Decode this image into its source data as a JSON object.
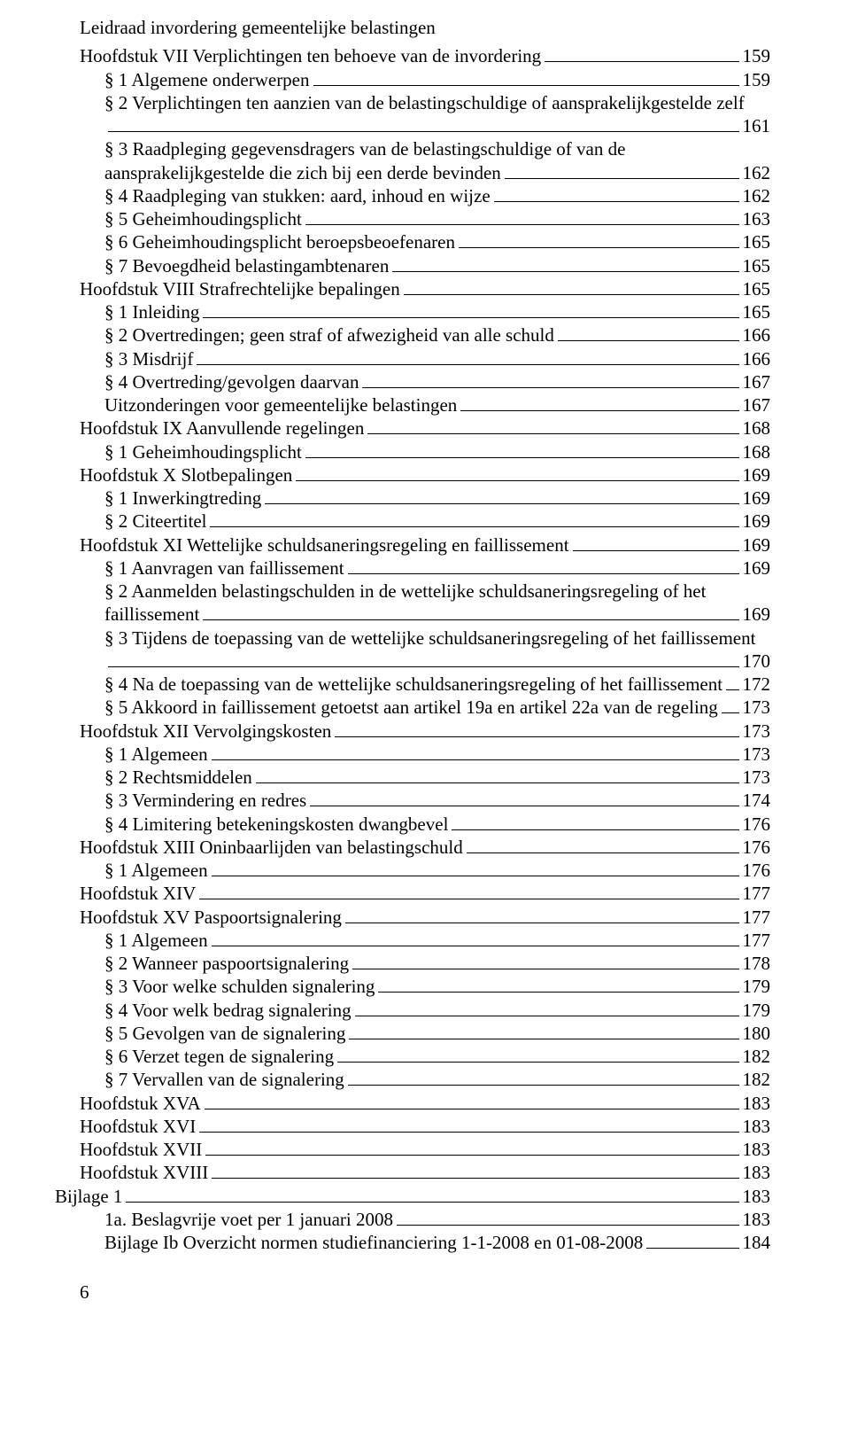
{
  "header": "Leidraad invordering gemeentelijke belastingen",
  "page_number": "6",
  "toc": [
    {
      "indent": 0,
      "label": "Hoofdstuk VII Verplichtingen ten behoeve van de invordering",
      "page": "159"
    },
    {
      "indent": 1,
      "label": "§ 1 Algemene onderwerpen",
      "page": "159"
    },
    {
      "indent": 1,
      "label": "§ 2 Verplichtingen ten aanzien van de belastingschuldige of aansprakelijkgestelde zelf",
      "page": "161",
      "wrap": true
    },
    {
      "indent": 1,
      "label": "§ 3 Raadpleging gegevensdragers van de belastingschuldige of van de aansprakelijkgestelde die zich bij een derde bevinden",
      "page": "162",
      "wrap": true
    },
    {
      "indent": 1,
      "label": "§ 4 Raadpleging van stukken: aard, inhoud en wijze",
      "page": "162"
    },
    {
      "indent": 1,
      "label": "§ 5 Geheimhoudingsplicht",
      "page": "163"
    },
    {
      "indent": 1,
      "label": "§ 6 Geheimhoudingsplicht beroepsbeoefenaren",
      "page": "165"
    },
    {
      "indent": 1,
      "label": "§ 7 Bevoegdheid belastingambtenaren",
      "page": "165"
    },
    {
      "indent": 0,
      "label": "Hoofdstuk VIII Strafrechtelijke bepalingen",
      "page": "165"
    },
    {
      "indent": 1,
      "label": "§ 1 Inleiding",
      "page": "165"
    },
    {
      "indent": 1,
      "label": "§ 2 Overtredingen; geen straf of afwezigheid van alle schuld",
      "page": "166"
    },
    {
      "indent": 1,
      "label": "§ 3 Misdrijf",
      "page": "166"
    },
    {
      "indent": 1,
      "label": "§ 4 Overtreding/gevolgen daarvan",
      "page": "167"
    },
    {
      "indent": 1,
      "label": "Uitzonderingen voor gemeentelijke belastingen",
      "page": "167"
    },
    {
      "indent": 0,
      "label": "Hoofdstuk IX Aanvullende regelingen",
      "page": "168"
    },
    {
      "indent": 1,
      "label": "§ 1 Geheimhoudingsplicht",
      "page": "168"
    },
    {
      "indent": 0,
      "label": "Hoofdstuk X Slotbepalingen",
      "page": "169"
    },
    {
      "indent": 1,
      "label": "§ 1 Inwerkingtreding",
      "page": "169"
    },
    {
      "indent": 1,
      "label": "§ 2 Citeertitel",
      "page": "169"
    },
    {
      "indent": 0,
      "label": "Hoofdstuk XI Wettelijke schuldsaneringsregeling en faillissement",
      "page": "169"
    },
    {
      "indent": 1,
      "label": "§ 1 Aanvragen van faillissement",
      "page": "169"
    },
    {
      "indent": 1,
      "label": "§ 2 Aanmelden belastingschulden in de wettelijke schuldsaneringsregeling of het faillissement",
      "page": "169",
      "wrap": true
    },
    {
      "indent": 1,
      "label": "§ 3 Tijdens de toepassing van de wettelijke schuldsaneringsregeling of het faillissement",
      "page": "170",
      "wrap": true
    },
    {
      "indent": 1,
      "label": "§ 4 Na de toepassing van de wettelijke schuldsaneringsregeling of het faillissement",
      "page": "172"
    },
    {
      "indent": 1,
      "label": "§ 5 Akkoord in faillissement getoetst aan artikel 19a en artikel 22a van de regeling",
      "page": "173"
    },
    {
      "indent": 0,
      "label": "Hoofdstuk XII Vervolgingskosten",
      "page": "173"
    },
    {
      "indent": 1,
      "label": "§ 1 Algemeen",
      "page": "173"
    },
    {
      "indent": 1,
      "label": "§ 2 Rechtsmiddelen",
      "page": "173"
    },
    {
      "indent": 1,
      "label": "§ 3 Vermindering en redres",
      "page": "174"
    },
    {
      "indent": 1,
      "label": "§ 4 Limitering betekeningskosten dwangbevel",
      "page": "176"
    },
    {
      "indent": 0,
      "label": "Hoofdstuk XIII Oninbaarlijden van belastingschuld",
      "page": "176"
    },
    {
      "indent": 1,
      "label": "§ 1 Algemeen",
      "page": "176"
    },
    {
      "indent": 0,
      "label": "Hoofdstuk XIV",
      "page": "177"
    },
    {
      "indent": 0,
      "label": "Hoofdstuk XV Paspoortsignalering",
      "page": "177"
    },
    {
      "indent": 1,
      "label": "§ 1 Algemeen",
      "page": "177"
    },
    {
      "indent": 1,
      "label": "§ 2 Wanneer paspoortsignalering",
      "page": "178"
    },
    {
      "indent": 1,
      "label": "§ 3 Voor welke schulden signalering",
      "page": "179"
    },
    {
      "indent": 1,
      "label": "§ 4 Voor welk bedrag signalering",
      "page": "179"
    },
    {
      "indent": 1,
      "label": "§ 5 Gevolgen van de signalering",
      "page": "180"
    },
    {
      "indent": 1,
      "label": "§ 6 Verzet tegen de signalering",
      "page": "182"
    },
    {
      "indent": 1,
      "label": "§ 7 Vervallen van de signalering",
      "page": "182"
    },
    {
      "indent": 0,
      "label": "Hoofdstuk XVA",
      "page": "183"
    },
    {
      "indent": 0,
      "label": "Hoofdstuk XVI",
      "page": "183"
    },
    {
      "indent": 0,
      "label": "Hoofdstuk XVII",
      "page": "183"
    },
    {
      "indent": 0,
      "label": "Hoofdstuk XVIII",
      "page": "183"
    },
    {
      "indent": 0,
      "label": "Bijlage 1",
      "page": "183",
      "outdent": true
    },
    {
      "indent": 1,
      "label": "1a. Beslagvrije voet per 1 januari 2008",
      "page": "183"
    },
    {
      "indent": 1,
      "label": "Bijlage Ib Overzicht normen studiefinanciering 1-1-2008 en 01-08-2008",
      "page": "184"
    }
  ]
}
